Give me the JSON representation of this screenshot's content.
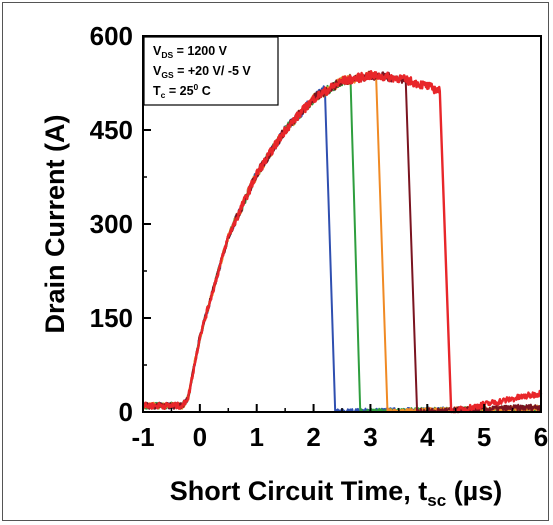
{
  "chart_data": {
    "type": "line",
    "xlabel": "Short Circuit Time, t",
    "xlabel_sub": "sc",
    "xlabel_unit": " (µs)",
    "ylabel": "Drain Current (A)",
    "xlim": [
      -1,
      6
    ],
    "ylim": [
      0,
      600
    ],
    "x_ticks": [
      "-1",
      "0",
      "1",
      "2",
      "3",
      "4",
      "5",
      "6"
    ],
    "y_ticks": [
      "0",
      "150",
      "300",
      "450",
      "600"
    ],
    "grid": false,
    "annotations": {
      "vds": {
        "main": "V",
        "sub": "DS",
        "rest": " = 1200 V"
      },
      "vgs": {
        "main": "V",
        "sub": "GS",
        "rest": " = +20 V/ -5 V"
      },
      "tc": {
        "main": "T",
        "sub": "c",
        "mid": " = 25",
        "sup": "0",
        "rest": " C"
      }
    },
    "series": [
      {
        "color": "#2f4fb0",
        "turn_off_start": 2.2,
        "turn_off_end": 2.38,
        "x": [
          -1,
          -0.3,
          -0.2,
          0,
          0.5,
          1,
          1.5,
          2,
          2.2,
          2.38,
          6
        ],
        "y": [
          10,
          10,
          25,
          120,
          280,
          380,
          450,
          500,
          515,
          0,
          5
        ]
      },
      {
        "color": "#2e9e3e",
        "turn_off_start": 2.65,
        "turn_off_end": 2.82,
        "x": [
          -1,
          -0.3,
          -0.2,
          0,
          0.5,
          1,
          1.5,
          2,
          2.5,
          2.65,
          2.82,
          6
        ],
        "y": [
          10,
          10,
          25,
          120,
          280,
          380,
          450,
          500,
          528,
          532,
          0,
          5
        ]
      },
      {
        "color": "#f08a24",
        "turn_off_start": 3.1,
        "turn_off_end": 3.3,
        "x": [
          -1,
          -0.3,
          -0.2,
          0,
          0.5,
          1,
          1.5,
          2,
          2.5,
          3,
          3.1,
          3.3,
          6
        ],
        "y": [
          10,
          10,
          25,
          120,
          280,
          380,
          450,
          500,
          528,
          537,
          536,
          0,
          6
        ]
      },
      {
        "color": "#7a1420",
        "turn_off_start": 3.62,
        "turn_off_end": 3.82,
        "x": [
          -1,
          -0.3,
          -0.2,
          0,
          0.5,
          1,
          1.5,
          2,
          2.5,
          3,
          3.5,
          3.62,
          3.82,
          6
        ],
        "y": [
          10,
          10,
          25,
          120,
          280,
          380,
          450,
          500,
          528,
          537,
          533,
          530,
          0,
          8
        ]
      },
      {
        "color": "#e8262a",
        "turn_off_start": 4.22,
        "turn_off_end": 4.42,
        "x": [
          -1,
          -0.3,
          -0.2,
          0,
          0.5,
          1,
          1.5,
          2,
          2.5,
          3,
          3.5,
          4,
          4.22,
          4.42,
          5,
          6
        ],
        "y": [
          10,
          10,
          25,
          120,
          280,
          380,
          450,
          500,
          528,
          537,
          533,
          520,
          512,
          0,
          12,
          30
        ]
      }
    ]
  }
}
